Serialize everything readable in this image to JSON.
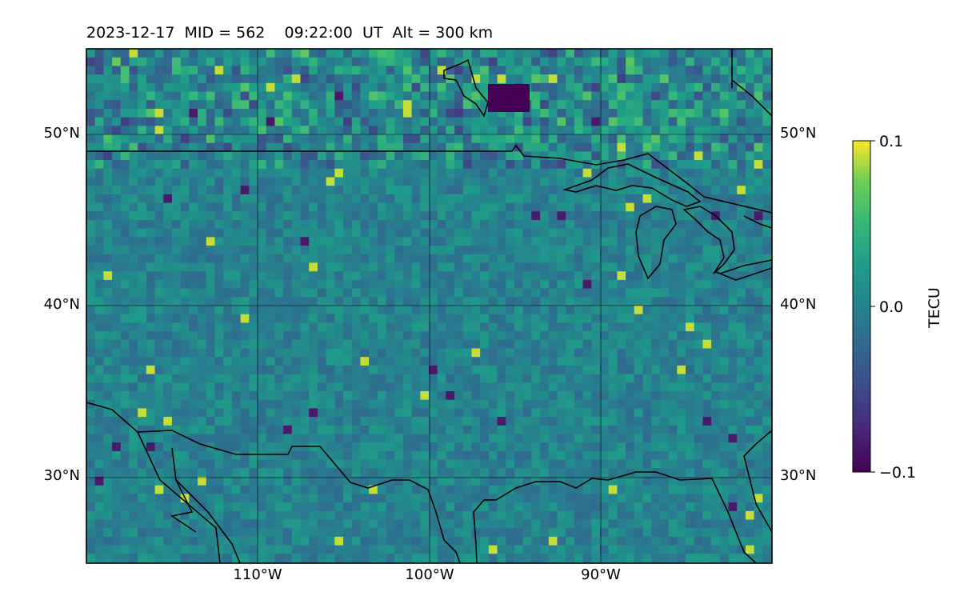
{
  "title": "2023-12-17  MID = 562    09:22:00  UT  Alt = 300 km",
  "map": {
    "lat_labels": [
      "50°N",
      "40°N",
      "30°N"
    ],
    "lon_labels": [
      "110°W",
      "100°W",
      "90°W"
    ],
    "lon_range": [
      -120,
      -80
    ],
    "lat_range": [
      25,
      55
    ]
  },
  "colorbar": {
    "label": "TECU",
    "ticks": [
      "0.1",
      "0.0",
      "−0.1"
    ],
    "colormap": "viridis",
    "range": [
      -0.1,
      0.1
    ]
  }
}
